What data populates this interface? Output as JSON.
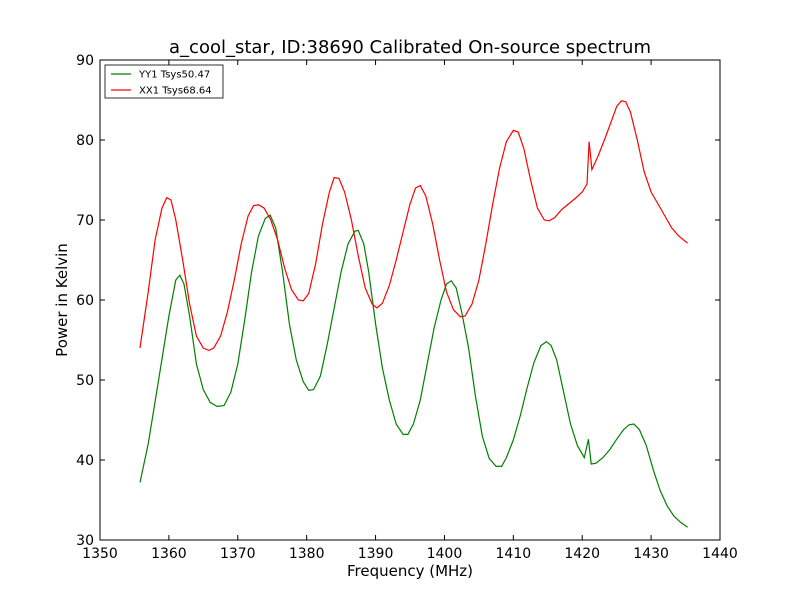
{
  "chart_data": {
    "type": "line",
    "title": "a_cool_star, ID:38690 Calibrated On-source spectrum",
    "xlabel": "Frequency (MHz)",
    "ylabel": "Power in Kelvin",
    "xlim": [
      1350,
      1440
    ],
    "ylim": [
      30,
      90
    ],
    "xticks": [
      1350,
      1360,
      1370,
      1380,
      1390,
      1400,
      1410,
      1420,
      1430,
      1440
    ],
    "yticks": [
      30,
      40,
      50,
      60,
      70,
      80,
      90
    ],
    "grid": false,
    "legend_position": "top-left",
    "series": [
      {
        "name": "YY1 Tsys50.47",
        "color": "#008000",
        "points": [
          [
            1355.8,
            37.2
          ],
          [
            1357.0,
            42.0
          ],
          [
            1358.5,
            50.0
          ],
          [
            1360.0,
            58.0
          ],
          [
            1361.0,
            62.5
          ],
          [
            1361.6,
            63.1
          ],
          [
            1362.2,
            62.0
          ],
          [
            1363.0,
            58.0
          ],
          [
            1364.0,
            52.0
          ],
          [
            1365.0,
            48.8
          ],
          [
            1366.0,
            47.2
          ],
          [
            1367.0,
            46.7
          ],
          [
            1368.0,
            46.8
          ],
          [
            1369.0,
            48.5
          ],
          [
            1370.0,
            52.0
          ],
          [
            1371.0,
            57.5
          ],
          [
            1372.0,
            63.5
          ],
          [
            1373.0,
            68.0
          ],
          [
            1374.0,
            70.2
          ],
          [
            1374.7,
            70.6
          ],
          [
            1375.5,
            69.0
          ],
          [
            1376.5,
            63.5
          ],
          [
            1377.5,
            57.0
          ],
          [
            1378.5,
            52.5
          ],
          [
            1379.5,
            49.8
          ],
          [
            1380.3,
            48.7
          ],
          [
            1381.0,
            48.8
          ],
          [
            1382.0,
            50.5
          ],
          [
            1383.0,
            54.5
          ],
          [
            1384.0,
            59.0
          ],
          [
            1385.0,
            63.5
          ],
          [
            1386.0,
            67.0
          ],
          [
            1387.0,
            68.6
          ],
          [
            1387.5,
            68.7
          ],
          [
            1388.3,
            67.0
          ],
          [
            1389.0,
            63.5
          ],
          [
            1390.0,
            57.0
          ],
          [
            1391.0,
            51.5
          ],
          [
            1392.0,
            47.5
          ],
          [
            1393.0,
            44.5
          ],
          [
            1394.0,
            43.2
          ],
          [
            1394.7,
            43.2
          ],
          [
            1395.5,
            44.5
          ],
          [
            1396.5,
            47.5
          ],
          [
            1397.5,
            52.0
          ],
          [
            1398.5,
            56.5
          ],
          [
            1399.5,
            60.0
          ],
          [
            1400.3,
            62.0
          ],
          [
            1401.0,
            62.4
          ],
          [
            1401.7,
            61.5
          ],
          [
            1402.5,
            58.5
          ],
          [
            1403.5,
            54.0
          ],
          [
            1404.5,
            48.0
          ],
          [
            1405.5,
            43.0
          ],
          [
            1406.5,
            40.2
          ],
          [
            1407.5,
            39.2
          ],
          [
            1408.3,
            39.2
          ],
          [
            1409.0,
            40.3
          ],
          [
            1410.0,
            42.5
          ],
          [
            1411.0,
            45.5
          ],
          [
            1412.0,
            49.0
          ],
          [
            1413.0,
            52.2
          ],
          [
            1414.0,
            54.3
          ],
          [
            1414.8,
            54.8
          ],
          [
            1415.5,
            54.3
          ],
          [
            1416.3,
            52.5
          ],
          [
            1417.3,
            48.5
          ],
          [
            1418.3,
            44.5
          ],
          [
            1419.3,
            41.8
          ],
          [
            1420.3,
            40.3
          ],
          [
            1420.9,
            42.6
          ],
          [
            1421.3,
            39.5
          ],
          [
            1422.0,
            39.6
          ],
          [
            1423.0,
            40.3
          ],
          [
            1424.0,
            41.3
          ],
          [
            1425.0,
            42.6
          ],
          [
            1426.0,
            43.8
          ],
          [
            1426.8,
            44.4
          ],
          [
            1427.5,
            44.5
          ],
          [
            1428.3,
            43.8
          ],
          [
            1429.3,
            41.8
          ],
          [
            1430.3,
            38.8
          ],
          [
            1431.3,
            36.2
          ],
          [
            1432.3,
            34.3
          ],
          [
            1433.3,
            33.0
          ],
          [
            1434.3,
            32.2
          ],
          [
            1435.3,
            31.6
          ]
        ]
      },
      {
        "name": "XX1 Tsys68.64",
        "color": "#ff0000",
        "points": [
          [
            1355.8,
            54.0
          ],
          [
            1357.0,
            61.0
          ],
          [
            1358.0,
            67.5
          ],
          [
            1359.0,
            71.5
          ],
          [
            1359.7,
            72.8
          ],
          [
            1360.3,
            72.5
          ],
          [
            1361.0,
            70.0
          ],
          [
            1362.0,
            65.0
          ],
          [
            1363.0,
            59.5
          ],
          [
            1364.0,
            55.5
          ],
          [
            1365.0,
            54.0
          ],
          [
            1365.8,
            53.7
          ],
          [
            1366.5,
            54.0
          ],
          [
            1367.5,
            55.5
          ],
          [
            1368.5,
            58.5
          ],
          [
            1369.5,
            62.5
          ],
          [
            1370.5,
            67.0
          ],
          [
            1371.5,
            70.5
          ],
          [
            1372.3,
            71.8
          ],
          [
            1373.0,
            71.9
          ],
          [
            1373.8,
            71.5
          ],
          [
            1374.8,
            70.0
          ],
          [
            1375.8,
            67.5
          ],
          [
            1376.8,
            64.0
          ],
          [
            1377.8,
            61.3
          ],
          [
            1378.8,
            60.0
          ],
          [
            1379.5,
            59.9
          ],
          [
            1380.3,
            60.8
          ],
          [
            1381.3,
            64.5
          ],
          [
            1382.3,
            69.5
          ],
          [
            1383.3,
            73.5
          ],
          [
            1384.0,
            75.3
          ],
          [
            1384.7,
            75.2
          ],
          [
            1385.5,
            73.5
          ],
          [
            1386.5,
            70.0
          ],
          [
            1387.5,
            65.5
          ],
          [
            1388.5,
            61.5
          ],
          [
            1389.5,
            59.5
          ],
          [
            1390.2,
            59.0
          ],
          [
            1391.0,
            59.6
          ],
          [
            1392.0,
            61.8
          ],
          [
            1393.0,
            65.0
          ],
          [
            1394.0,
            68.5
          ],
          [
            1395.0,
            72.0
          ],
          [
            1395.8,
            74.0
          ],
          [
            1396.5,
            74.3
          ],
          [
            1397.3,
            73.0
          ],
          [
            1398.3,
            69.5
          ],
          [
            1399.3,
            65.0
          ],
          [
            1400.3,
            61.0
          ],
          [
            1401.3,
            58.8
          ],
          [
            1402.3,
            57.9
          ],
          [
            1403.0,
            58.0
          ],
          [
            1404.0,
            59.5
          ],
          [
            1405.0,
            62.5
          ],
          [
            1406.0,
            67.0
          ],
          [
            1407.0,
            72.0
          ],
          [
            1408.0,
            76.5
          ],
          [
            1409.0,
            79.8
          ],
          [
            1410.0,
            81.2
          ],
          [
            1410.7,
            81.0
          ],
          [
            1411.5,
            79.0
          ],
          [
            1412.5,
            75.0
          ],
          [
            1413.5,
            71.5
          ],
          [
            1414.5,
            70.0
          ],
          [
            1415.2,
            69.9
          ],
          [
            1416.0,
            70.3
          ],
          [
            1417.0,
            71.3
          ],
          [
            1418.0,
            72.0
          ],
          [
            1419.0,
            72.7
          ],
          [
            1420.0,
            73.5
          ],
          [
            1420.7,
            74.5
          ],
          [
            1421.0,
            79.8
          ],
          [
            1421.4,
            76.3
          ],
          [
            1422.3,
            78.0
          ],
          [
            1423.3,
            80.2
          ],
          [
            1424.3,
            82.5
          ],
          [
            1425.0,
            84.2
          ],
          [
            1425.7,
            84.9
          ],
          [
            1426.3,
            84.8
          ],
          [
            1427.0,
            83.5
          ],
          [
            1428.0,
            80.0
          ],
          [
            1429.0,
            76.0
          ],
          [
            1430.0,
            73.5
          ],
          [
            1431.0,
            72.0
          ],
          [
            1432.0,
            70.5
          ],
          [
            1433.0,
            69.0
          ],
          [
            1434.0,
            68.0
          ],
          [
            1435.3,
            67.1
          ]
        ]
      }
    ]
  }
}
